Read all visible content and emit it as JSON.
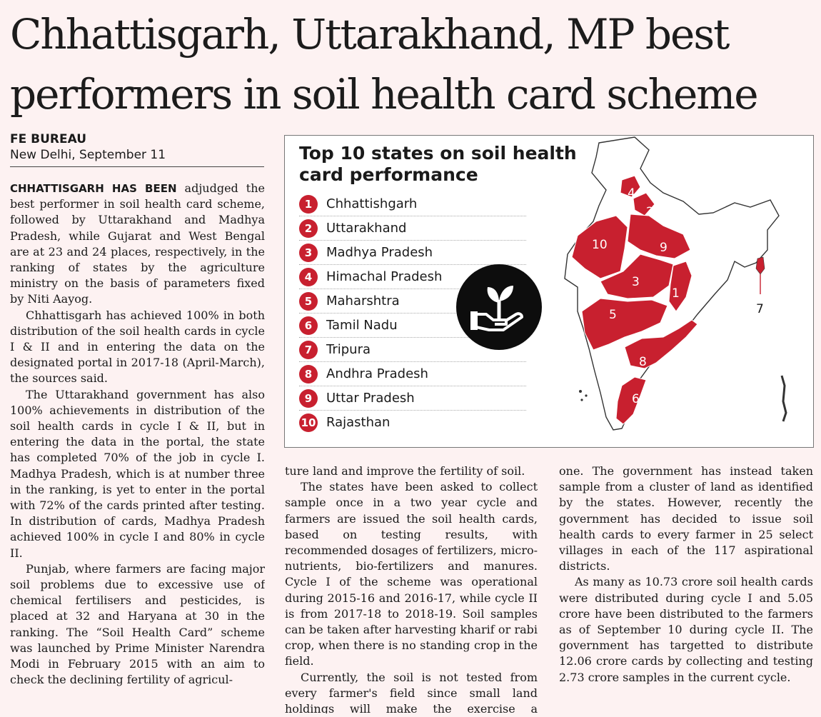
{
  "article": {
    "headline": "Chhattisgarh, Uttarakhand, MP best performers in soil health card scheme",
    "agency": "FE BUREAU",
    "dateline": "New Delhi, September 11",
    "lead_in": "CHHATTISGARH HAS BEEN",
    "p1_rest": " adjudged the best performer in soil health card scheme, followed by Uttarakhand and Madhya Pradesh, while Gujarat and West Bengal are at 23 and 24 places, respectively, in the ranking of states by the agriculture ministry on the basis of parameters fixed by Niti Aayog.",
    "p2": "Chhattisgarh has achieved 100% in both distribution of the soil health cards in cycle I & II and in entering the data on the designated portal in 2017-18 (April-March), the sources said.",
    "p3": "The Uttarakhand government has also 100% achievements in distribution of the soil health cards in cycle I & II, but in entering the data in the portal, the state has completed 70% of the job in cycle I. Madhya Pradesh, which is at number three in the ranking, is yet to enter in the portal with 72% of the cards printed after testing. In distribution of cards, Madhya Pradesh achieved 100% in cycle I and 80% in cycle II.",
    "p4": "Punjab, where farmers are facing major soil problems due to excessive use of chemical fertilisers and pesticides, is placed at 32 and Haryana at 30 in the ranking. The “Soil Health Card” scheme was launched by Prime Minister Narendra Modi in February 2015 with an aim to check the declining fertility of agricul-",
    "p4_cont": "ture land and improve the fertility of soil.",
    "p5": "The states have been asked to collect sample once in a two year cycle and farmers are issued the soil health cards, based on testing results, with recommended dosages of fertilizers, micro-nutrients, bio-fertilizers and manures. Cycle I of the scheme was operational during 2015-16 and 2016-17, while cycle II is from 2017-18 to 2018-19. Soil samples can be taken after harvesting kharif or rabi crop, when there is no standing crop in the field.",
    "p6": "Currently, the soil is not tested from every farmer's field since small land holdings will make the exercise a mammoth",
    "p6_cont": "one. The government has instead taken sample from a cluster of land as identified by the states. However, recently the government has decided to issue soil health cards to every farmer in 25 select villages in each of the 117 aspirational districts.",
    "p7": "As many as 10.73 crore soil health cards were distributed during cycle I and 5.05 crore have been distributed to the farmers as of September 10 during cycle II. The government has targetted to distribute 12.06 crore cards by collecting and testing 2.73 crore samples in the current cycle."
  },
  "infographic": {
    "title": "Top 10 states on soil health card performance",
    "accent_color": "#c8202f",
    "icon": "hand-with-seedling-icon",
    "ranks": [
      {
        "rank": "1",
        "state": "Chhattishgarh"
      },
      {
        "rank": "2",
        "state": "Uttarakhand"
      },
      {
        "rank": "3",
        "state": "Madhya Pradesh"
      },
      {
        "rank": "4",
        "state": "Himachal Pradesh"
      },
      {
        "rank": "5",
        "state": "Maharshtra"
      },
      {
        "rank": "6",
        "state": "Tamil Nadu"
      },
      {
        "rank": "7",
        "state": "Tripura"
      },
      {
        "rank": "8",
        "state": "Andhra Pradesh"
      },
      {
        "rank": "9",
        "state": "Uttar Pradesh"
      },
      {
        "rank": "10",
        "state": "Rajasthan"
      }
    ]
  }
}
